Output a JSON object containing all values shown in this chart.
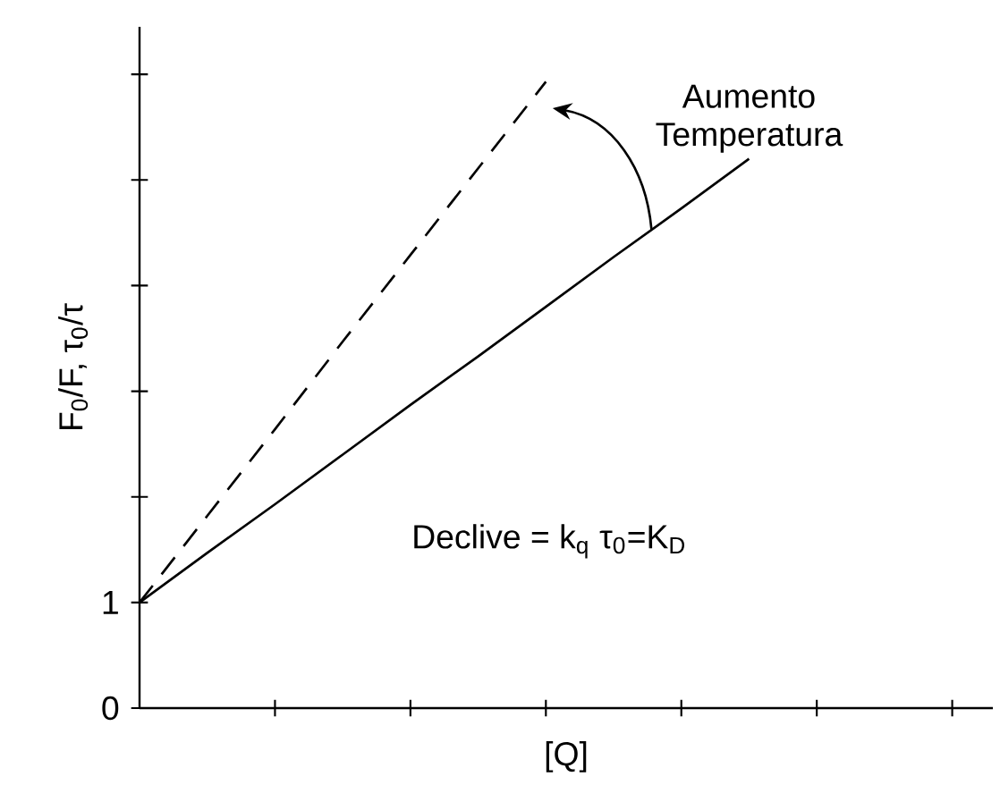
{
  "chart_data": {
    "type": "line",
    "xlabel": "[Q]",
    "ylabel": "F$_{0}$/F, τ$_{0}$/τ",
    "categories": [
      null,
      null,
      null,
      null,
      null,
      null,
      null,
      null,
      null,
      null,
      null,
      null,
      null
    ],
    "ylim": [
      0,
      6.45
    ],
    "yticks": [
      0,
      1,
      {
        "value": 2,
        "label": null
      },
      {
        "value": 3,
        "label": null
      },
      {
        "value": 4,
        "label": null
      },
      {
        "value": 5,
        "label": null
      },
      {
        "value": 6,
        "label": null
      }
    ],
    "tick_labels": "y",
    "series": [
      {
        "color": "#000000",
        "line_style": "solid",
        "values": [
          1,
          1.47,
          1.93,
          2.4,
          2.87,
          3.33,
          3.8,
          4.27,
          4.73,
          5.2,
          null,
          null,
          null
        ]
      },
      {
        "color": "#000000",
        "line_style": "dashed",
        "values": [
          1,
          1.82,
          2.64,
          3.47,
          4.29,
          5.11,
          5.93,
          null,
          null,
          null,
          null,
          null,
          null
        ]
      }
    ],
    "annotations": [
      "Aumento Temperatura",
      "Declive = k$_{q}$ τ$_{0}$=K$_{D}$"
    ],
    "grid": false,
    "marker": "none"
  }
}
